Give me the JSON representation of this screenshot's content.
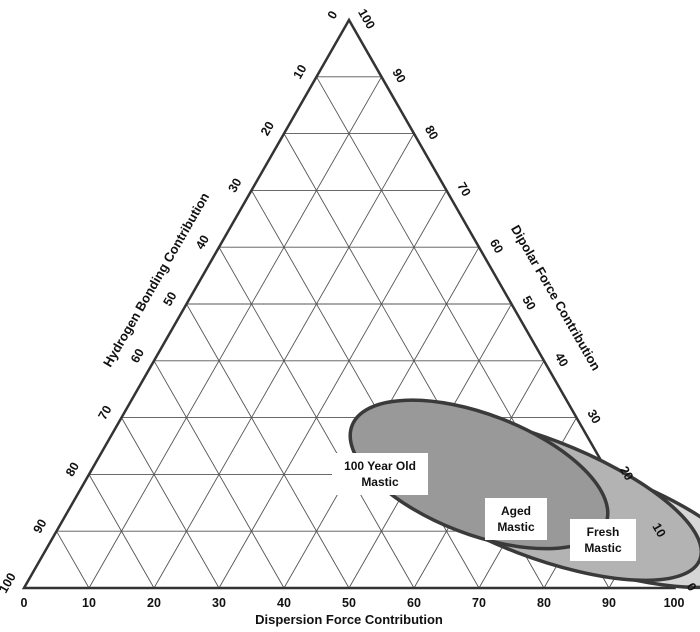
{
  "chart_data": {
    "type": "ternary",
    "title": "",
    "axes": {
      "bottom": {
        "label": "Dispersion Force Contribution",
        "ticks": [
          "0",
          "10",
          "20",
          "30",
          "40",
          "50",
          "60",
          "70",
          "80",
          "90",
          "100"
        ]
      },
      "left": {
        "label": "Hydrogen Bonding Contribution",
        "ticks": [
          "0",
          "10",
          "20",
          "30",
          "40",
          "50",
          "60",
          "70",
          "80",
          "90",
          "100"
        ]
      },
      "right": {
        "label": "Dipolar Force Contribution",
        "ticks": [
          "0",
          "10",
          "20",
          "30",
          "40",
          "50",
          "60",
          "70",
          "80",
          "90",
          "100"
        ]
      }
    },
    "grid": true,
    "grid_step": 10,
    "regions": [
      {
        "name": "Fresh Mastic",
        "label_lines": [
          "Fresh",
          "Mastic"
        ],
        "center": {
          "dispersion": 79,
          "dipolar": 13,
          "hydrogen": 8
        },
        "fill": "#d6d6d6"
      },
      {
        "name": "Aged Mastic",
        "label_lines": [
          "Aged",
          "Mastic"
        ],
        "center": {
          "dispersion": 71,
          "dipolar": 16,
          "hydrogen": 13
        },
        "fill": "#b3b3b3"
      },
      {
        "name": "100 Year Old Mastic",
        "label_lines": [
          "100 Year Old",
          "Mastic"
        ],
        "center": {
          "dispersion": 60,
          "dipolar": 20,
          "hydrogen": 20
        },
        "fill": "#999999"
      }
    ],
    "colors": {
      "frame": "#333333",
      "grid": "#555555",
      "outline": "#3a3a3a",
      "label_box": "#ffffff"
    }
  }
}
